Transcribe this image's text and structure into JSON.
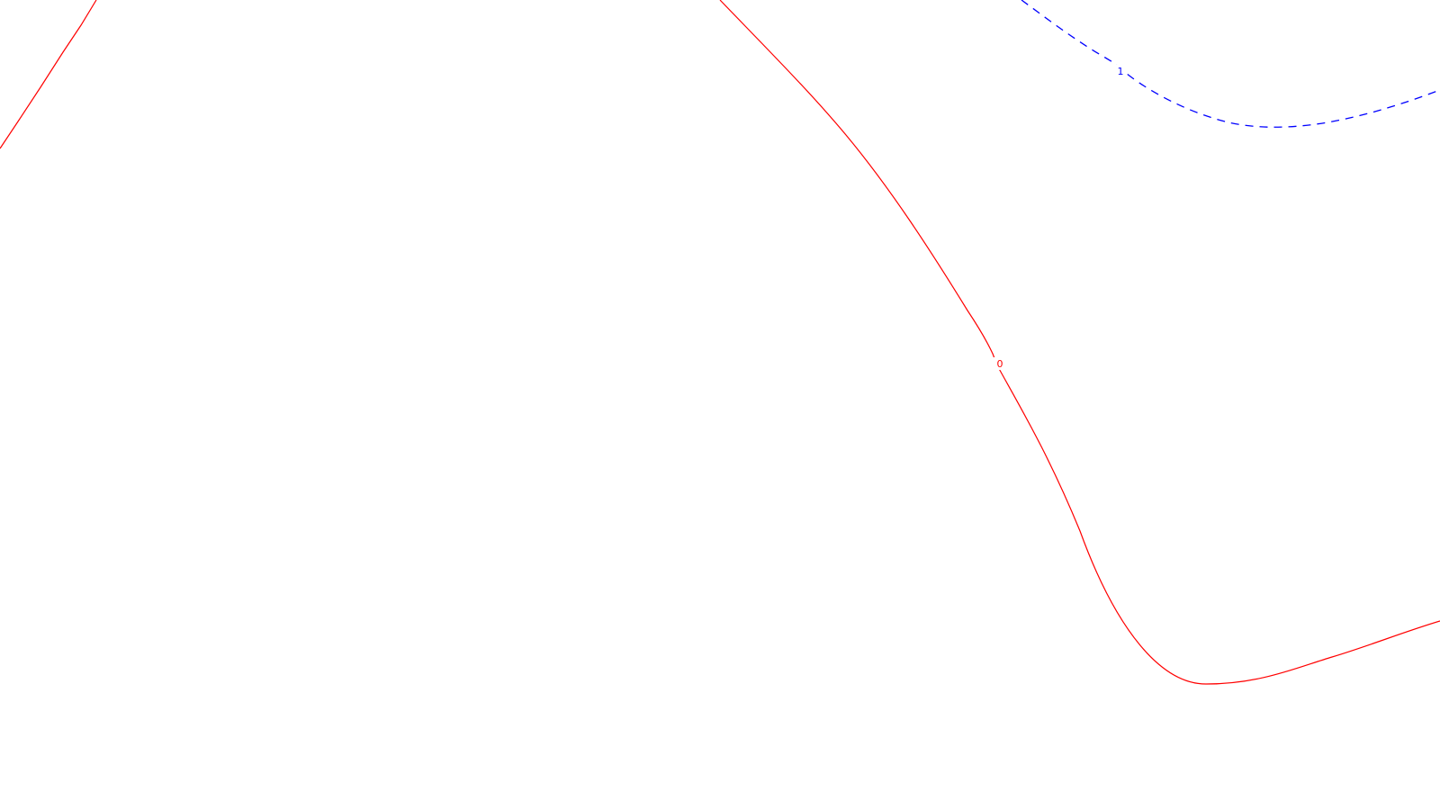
{
  "contours": [
    {
      "level_label": "0",
      "color": "#ff0000",
      "style": "solid"
    },
    {
      "level_label": "1",
      "color": "#0000ff",
      "style": "dashed"
    }
  ]
}
